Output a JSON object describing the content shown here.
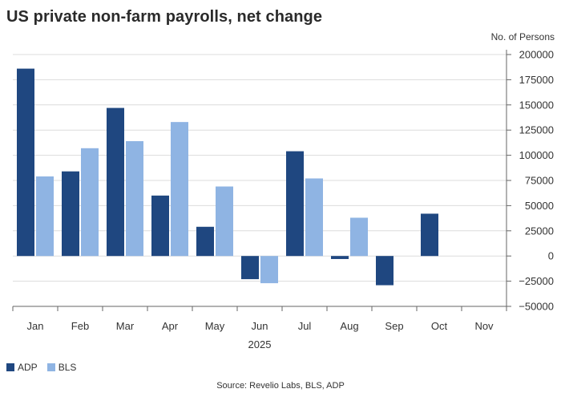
{
  "title": "US private non-farm payrolls, net change",
  "unit_label": "No. of Persons",
  "legend": [
    {
      "label": "ADP",
      "color": "#1f4780"
    },
    {
      "label": "BLS",
      "color": "#8fb4e3"
    }
  ],
  "source": "Source: Revelio Labs, BLS, ADP",
  "chart_data": {
    "type": "bar",
    "categories": [
      "Jan",
      "Feb",
      "Mar",
      "Apr",
      "May",
      "Jun",
      "Jul",
      "Aug",
      "Sep",
      "Oct",
      "Nov"
    ],
    "xlabel": "2025",
    "ylabel": "No. of Persons",
    "ylim": [
      -50000,
      200000
    ],
    "yticks": [
      200000,
      175000,
      150000,
      125000,
      100000,
      75000,
      50000,
      25000,
      0,
      -25000,
      -50000
    ],
    "ytick_labels": [
      "200000",
      "175000",
      "150000",
      "125000",
      "100000",
      "75000",
      "50000",
      "25000",
      "0",
      "−25000",
      "−50000"
    ],
    "grid": true,
    "legend_position": "bottom-left",
    "series": [
      {
        "name": "ADP",
        "color": "#1f4780",
        "values": [
          186000,
          84000,
          147000,
          60000,
          29000,
          -23000,
          104000,
          -3000,
          -29000,
          42000,
          null
        ]
      },
      {
        "name": "BLS",
        "color": "#8fb4e3",
        "values": [
          79000,
          107000,
          114000,
          133000,
          69000,
          -27000,
          77000,
          38000,
          null,
          null,
          null
        ]
      }
    ]
  }
}
